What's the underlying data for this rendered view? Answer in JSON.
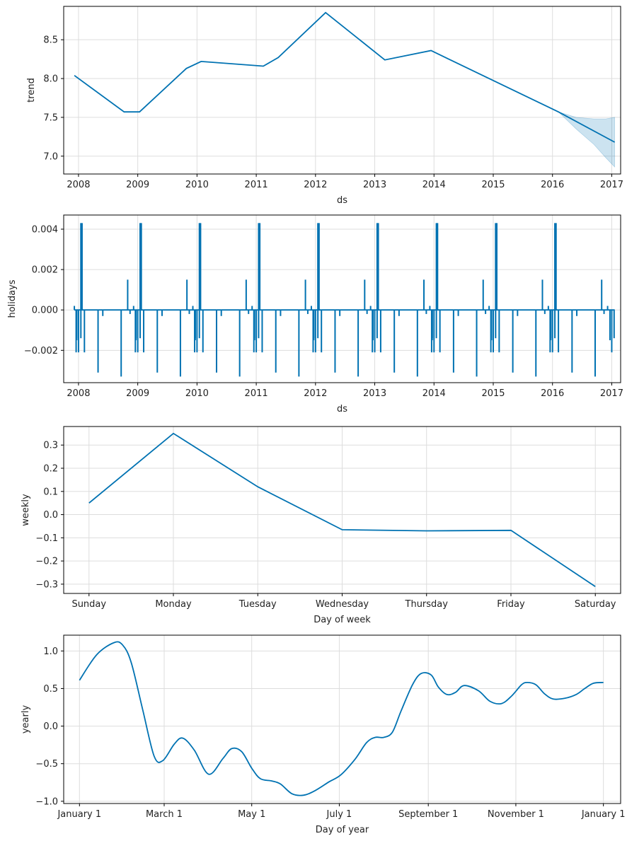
{
  "chart_data": [
    {
      "type": "line",
      "xlabel": "ds",
      "ylabel": "trend",
      "xlim": [
        2007.75,
        2017.15
      ],
      "ylim": [
        6.77,
        8.93
      ],
      "x_ticks": [
        2008,
        2009,
        2010,
        2011,
        2012,
        2013,
        2014,
        2015,
        2016,
        2017
      ],
      "x_tick_labels": [
        "2008",
        "2009",
        "2010",
        "2011",
        "2012",
        "2013",
        "2014",
        "2015",
        "2016",
        "2017"
      ],
      "y_ticks": [
        7.0,
        7.5,
        8.0,
        8.5
      ],
      "y_tick_labels": [
        "7.0",
        "7.5",
        "8.0",
        "8.5"
      ],
      "grid": true,
      "x": [
        2007.93,
        2008.77,
        2009.03,
        2009.82,
        2010.07,
        2011.12,
        2011.37,
        2012.17,
        2013.17,
        2013.95,
        2016.1,
        2017.05
      ],
      "y": [
        8.04,
        7.57,
        7.57,
        8.13,
        8.22,
        8.16,
        8.27,
        8.85,
        8.24,
        8.36,
        7.57,
        7.18
      ],
      "uncertainty": {
        "x": [
          2016.1,
          2016.4,
          2016.7,
          2016.9,
          2017.05
        ],
        "lower": [
          7.57,
          7.35,
          7.15,
          6.98,
          6.86
        ],
        "upper": [
          7.57,
          7.5,
          7.48,
          7.48,
          7.5
        ]
      }
    },
    {
      "type": "line",
      "xlabel": "ds",
      "ylabel": "holidays",
      "xlim": [
        2007.75,
        2017.15
      ],
      "ylim": [
        -0.0036,
        0.0047
      ],
      "x_ticks": [
        2008,
        2009,
        2010,
        2011,
        2012,
        2013,
        2014,
        2015,
        2016,
        2017
      ],
      "x_tick_labels": [
        "2008",
        "2009",
        "2010",
        "2011",
        "2012",
        "2013",
        "2014",
        "2015",
        "2016",
        "2017"
      ],
      "y_ticks": [
        -0.002,
        0.0,
        0.002,
        0.004
      ],
      "y_tick_labels": [
        "−0.002",
        "0.000",
        "0.002",
        "0.004"
      ],
      "grid": true,
      "baseline": {
        "x_start": 2007.93,
        "x_end": 2017.05,
        "y": 0.0
      },
      "pattern_offsets": [
        -0.04,
        -0.03,
        0.04,
        0.1,
        0.33,
        0.41,
        0.72,
        0.83,
        0.87,
        0.93,
        0.97,
        1.0,
        1.04,
        1.06
      ],
      "pattern_values": [
        -0.0021,
        -0.0014,
        0.0043,
        -0.0021,
        -0.0031,
        -0.0003,
        -0.0033,
        0.0015,
        -0.0002,
        0.0002,
        -0.0015,
        -0.0021,
        -0.0014,
        0.0043
      ],
      "pattern_starts": [
        2007.0,
        2008.0,
        2009.0,
        2010.0,
        2011.0,
        2012.0,
        2013.0,
        2014.0,
        2015.0,
        2016.0
      ]
    },
    {
      "type": "line",
      "xlabel": "Day of week",
      "ylabel": "weekly",
      "xlim": [
        -0.3,
        6.3
      ],
      "ylim": [
        -0.34,
        0.38
      ],
      "categories": [
        "Sunday",
        "Monday",
        "Tuesday",
        "Wednesday",
        "Thursday",
        "Friday",
        "Saturday"
      ],
      "y_ticks": [
        -0.3,
        -0.2,
        -0.1,
        0.0,
        0.1,
        0.2,
        0.3
      ],
      "y_tick_labels": [
        "−0.3",
        "−0.2",
        "−0.1",
        "0.0",
        "0.1",
        "0.2",
        "0.3"
      ],
      "grid": true,
      "values": [
        0.05,
        0.35,
        0.12,
        -0.065,
        -0.07,
        -0.068,
        -0.31
      ]
    },
    {
      "type": "line",
      "xlabel": "Day of year",
      "ylabel": "yearly",
      "xlim": [
        -11,
        377
      ],
      "ylim": [
        -1.03,
        1.21
      ],
      "x_ticks": [
        0,
        59,
        120,
        181,
        243,
        304,
        365
      ],
      "x_tick_labels": [
        "January 1",
        "March 1",
        "May 1",
        "July 1",
        "September 1",
        "November 1",
        "January 1"
      ],
      "y_ticks": [
        -1.0,
        -0.5,
        0.0,
        0.5,
        1.0
      ],
      "y_tick_labels": [
        "−1.0",
        "−0.5",
        "0.0",
        "0.5",
        "1.0"
      ],
      "grid": true,
      "x": [
        0,
        12,
        24,
        30,
        36,
        44,
        52,
        58,
        66,
        72,
        80,
        90,
        100,
        106,
        113,
        120,
        126,
        134,
        140,
        148,
        156,
        164,
        174,
        182,
        192,
        200,
        206,
        212,
        218,
        224,
        232,
        238,
        245,
        250,
        256,
        262,
        268,
        278,
        286,
        294,
        301,
        308,
        312,
        318,
        324,
        330,
        338,
        346,
        352,
        358,
        365
      ],
      "y": [
        0.61,
        0.95,
        1.11,
        1.08,
        0.85,
        0.22,
        -0.4,
        -0.46,
        -0.24,
        -0.16,
        -0.32,
        -0.64,
        -0.43,
        -0.3,
        -0.34,
        -0.56,
        -0.7,
        -0.73,
        -0.77,
        -0.9,
        -0.92,
        -0.86,
        -0.74,
        -0.65,
        -0.44,
        -0.22,
        -0.15,
        -0.15,
        -0.08,
        0.2,
        0.55,
        0.7,
        0.68,
        0.52,
        0.42,
        0.45,
        0.54,
        0.47,
        0.33,
        0.3,
        0.4,
        0.55,
        0.58,
        0.55,
        0.43,
        0.36,
        0.37,
        0.42,
        0.5,
        0.57,
        0.58
      ]
    }
  ]
}
